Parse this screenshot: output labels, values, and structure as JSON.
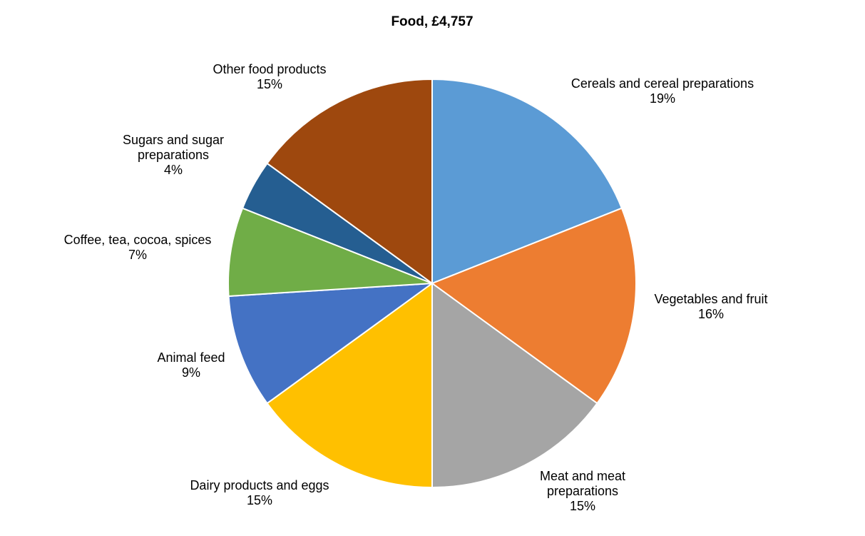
{
  "chart_data": {
    "type": "pie",
    "title": "Food, £4,757",
    "slices": [
      {
        "name": "Cereals and cereal preparations",
        "label_lines": [
          "Cereals and cereal preparations"
        ],
        "value": 19,
        "value_label": "19%",
        "color": "#5B9BD5"
      },
      {
        "name": "Vegetables and fruit",
        "label_lines": [
          "Vegetables and fruit"
        ],
        "value": 16,
        "value_label": "16%",
        "color": "#ED7D31"
      },
      {
        "name": "Meat and meat preparations",
        "label_lines": [
          "Meat and meat",
          "preparations"
        ],
        "value": 15,
        "value_label": "15%",
        "color": "#A5A5A5"
      },
      {
        "name": "Dairy products and eggs",
        "label_lines": [
          "Dairy products and eggs"
        ],
        "value": 15,
        "value_label": "15%",
        "color": "#FFC000"
      },
      {
        "name": "Animal feed",
        "label_lines": [
          "Animal feed"
        ],
        "value": 9,
        "value_label": "9%",
        "color": "#4472C4"
      },
      {
        "name": "Coffee, tea, cocoa, spices",
        "label_lines": [
          "Coffee, tea, cocoa, spices"
        ],
        "value": 7,
        "value_label": "7%",
        "color": "#70AD47"
      },
      {
        "name": "Sugars and sugar preparations",
        "label_lines": [
          "Sugars and sugar",
          "preparations"
        ],
        "value": 4,
        "value_label": "4%",
        "color": "#255E91"
      },
      {
        "name": "Other food products",
        "label_lines": [
          "Other food products"
        ],
        "value": 15,
        "value_label": "15%",
        "color": "#9E480E"
      }
    ],
    "start": "12 o'clock",
    "direction": "clockwise"
  }
}
